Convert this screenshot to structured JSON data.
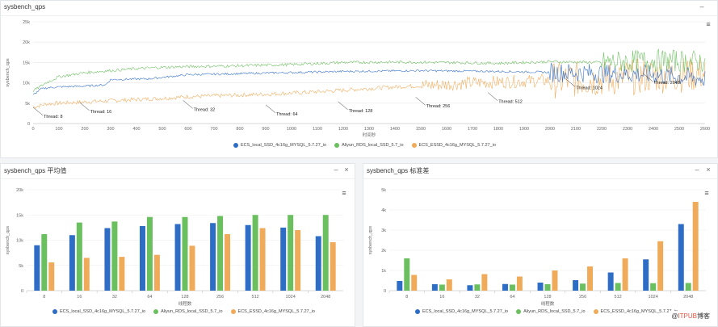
{
  "colors": {
    "s1": "#2e6dc6",
    "s2": "#6abf5e",
    "s3": "#f0ab5a",
    "watermark": "#e5533d"
  },
  "panels": {
    "top": {
      "title": "sysbench_qps",
      "minimize": "–",
      "menu": "≡"
    },
    "left": {
      "title": "sysbench_qps 平均值",
      "minimize": "–",
      "close": "×",
      "menu": "≡"
    },
    "right": {
      "title": "sysbench_qps 标准差",
      "minimize": "–",
      "close": "×",
      "menu": "≡"
    }
  },
  "legend": [
    "ECS_local_SSD_4c16g_MYSQL_5.7.27_io",
    "Aliyun_RDS_local_SSD_5.7_io",
    "ECS_ESSD_4c16g_MYSQL_5.7.27_io"
  ],
  "watermark": {
    "prefix": "@",
    "brand": "ITPUB",
    "suffix": "博客"
  },
  "chart_data": [
    {
      "type": "line",
      "title": "sysbench_qps",
      "xlabel": "时间秒",
      "ylabel": "sysbench_qps",
      "xlim": [
        0,
        2600
      ],
      "ylim": [
        0,
        25000
      ],
      "xticks": [
        0,
        100,
        200,
        300,
        400,
        500,
        600,
        700,
        800,
        900,
        1000,
        1100,
        1200,
        1300,
        1400,
        1500,
        1600,
        1700,
        1800,
        1900,
        2000,
        2100,
        2200,
        2300,
        2400,
        2500,
        2600
      ],
      "yticks": [
        0,
        5000,
        10000,
        15000,
        20000,
        25000
      ],
      "ytick_labels": [
        "0",
        "5k",
        "10k",
        "15k",
        "20k",
        "25k"
      ],
      "grid": true,
      "legend_position": "bottom",
      "series": [
        {
          "name": "ECS_local_SSD_4c16g_MYSQL_5.7.27_io",
          "x": [
            0,
            30,
            60,
            100,
            200,
            280,
            300,
            450,
            600,
            900,
            1200,
            1500,
            1800,
            2100,
            2300,
            2400,
            2500,
            2600
          ],
          "y": [
            7000,
            8500,
            8800,
            9000,
            9200,
            9500,
            10800,
            11000,
            12000,
            12400,
            12800,
            13000,
            12800,
            12500,
            12200,
            12000,
            11500,
            11000
          ]
        },
        {
          "name": "Aliyun_RDS_local_SSD_5.7_io",
          "x": [
            0,
            50,
            100,
            200,
            300,
            400,
            500,
            600,
            800,
            1000,
            1200,
            1400,
            1600,
            1800,
            2000,
            2200,
            2400,
            2600
          ],
          "y": [
            8000,
            10000,
            11500,
            12500,
            13000,
            13500,
            13800,
            14000,
            14200,
            14500,
            15000,
            15100,
            15000,
            14800,
            15200,
            15000,
            15500,
            15200
          ]
        },
        {
          "name": "ECS_ESSD_4c16g_MYSQL_5.7.27_io",
          "x": [
            0,
            50,
            100,
            200,
            300,
            400,
            500,
            600,
            700,
            800,
            900,
            1000,
            1100,
            1200,
            1300,
            1400,
            1500,
            1600,
            1700,
            1800,
            1900,
            2000,
            2100,
            2200,
            2300,
            2400,
            2500,
            2600
          ],
          "y": [
            4000,
            4800,
            5000,
            5300,
            5600,
            5900,
            6200,
            6600,
            6800,
            7000,
            7200,
            7500,
            7800,
            8200,
            8600,
            9000,
            9300,
            9600,
            10000,
            10200,
            10400,
            10600,
            10800,
            11000,
            11300,
            11800,
            12000,
            12300
          ]
        }
      ],
      "annotations": [
        {
          "text": "Thread: 8",
          "x": 0,
          "y": 4000
        },
        {
          "text": "Thread: 16",
          "x": 180,
          "y": 5200
        },
        {
          "text": "Thread: 32",
          "x": 580,
          "y": 5700
        },
        {
          "text": "Thread: 64",
          "x": 900,
          "y": 4600
        },
        {
          "text": "Thread: 128",
          "x": 1180,
          "y": 5400
        },
        {
          "text": "Thread: 256",
          "x": 1480,
          "y": 6500
        },
        {
          "text": "Thread: 512",
          "x": 1760,
          "y": 7600
        },
        {
          "text": "Thread: 1024",
          "x": 2060,
          "y": 11000
        },
        {
          "text": "Thread: 2048",
          "x": 2360,
          "y": 12300
        }
      ]
    },
    {
      "type": "bar",
      "title": "sysbench_qps 平均值",
      "xlabel": "线程数",
      "ylabel": "sysbench_qps",
      "ylim": [
        0,
        20000
      ],
      "yticks": [
        0,
        5000,
        10000,
        15000,
        20000
      ],
      "ytick_labels": [
        "0",
        "5k",
        "10k",
        "15k",
        "20k"
      ],
      "legend_position": "bottom",
      "categories": [
        "8",
        "16",
        "32",
        "64",
        "128",
        "256",
        "512",
        "1024",
        "2048"
      ],
      "series": [
        {
          "name": "ECS_local_SSD_4c16g_MYSQL_5.7.27_io",
          "values": [
            9000,
            11000,
            12400,
            12800,
            13200,
            13400,
            13000,
            12500,
            10800
          ]
        },
        {
          "name": "Aliyun_RDS_local_SSD_5.7_io",
          "values": [
            11200,
            13500,
            13700,
            14600,
            14600,
            14800,
            15000,
            15000,
            15000
          ]
        },
        {
          "name": "ECS_ESSD_4c16g_MYSQL_5.7.27_io",
          "values": [
            5600,
            6500,
            6700,
            7100,
            8900,
            11200,
            12400,
            12000,
            9600
          ]
        }
      ]
    },
    {
      "type": "bar",
      "title": "sysbench_qps 标准差",
      "xlabel": "线程数",
      "ylabel": "sysbench_qps",
      "ylim": [
        0,
        5000
      ],
      "yticks": [
        0,
        1000,
        2000,
        3000,
        4000,
        5000
      ],
      "ytick_labels": [
        "0",
        "1k",
        "2k",
        "3k",
        "4k",
        "5k"
      ],
      "legend_position": "bottom",
      "categories": [
        "8",
        "16",
        "32",
        "64",
        "128",
        "256",
        "512",
        "1024",
        "2048"
      ],
      "series": [
        {
          "name": "ECS_local_SSD_4c16g_MYSQL_5.7.27_io",
          "values": [
            480,
            320,
            270,
            330,
            400,
            520,
            900,
            1550,
            3300
          ]
        },
        {
          "name": "Aliyun_RDS_local_SSD_5.7_io",
          "values": [
            1600,
            300,
            310,
            300,
            320,
            350,
            380,
            370,
            380
          ]
        },
        {
          "name": "ECS_ESSD_4c16g_MYSQL_5.7.27_io",
          "values": [
            780,
            560,
            820,
            700,
            1000,
            1200,
            1600,
            2450,
            4400
          ]
        }
      ]
    }
  ]
}
